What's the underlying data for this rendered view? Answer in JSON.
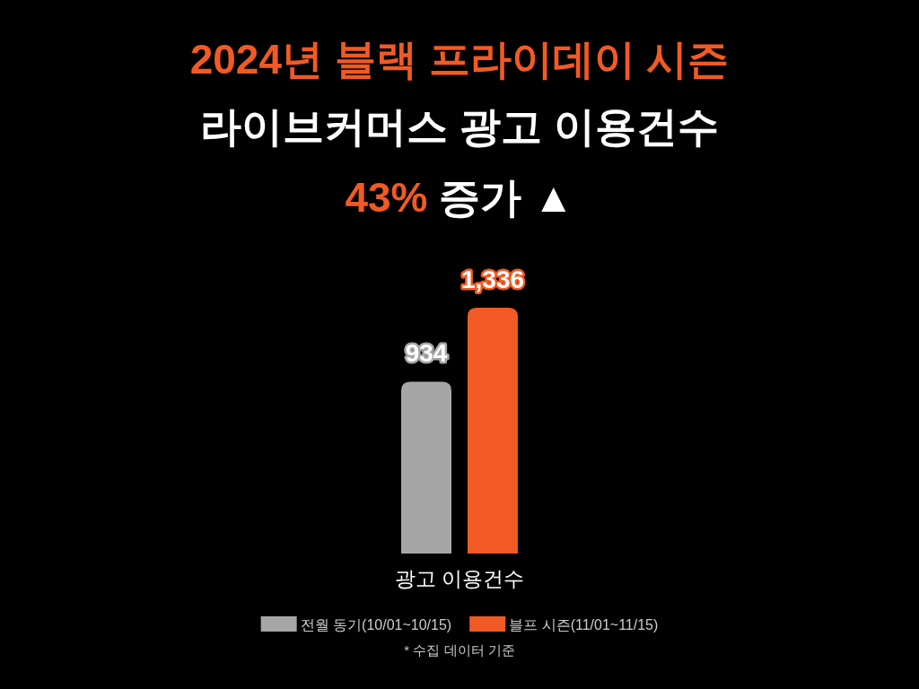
{
  "chart_data": {
    "type": "bar",
    "title": "2024년 블랙 프라이데이 시즌",
    "subtitle": "라이브커머스 광고 이용건수",
    "annotations": [
      "43% 증가 ▲",
      "* 수집 데이터 기준"
    ],
    "categories": [
      "광고 이용건수"
    ],
    "series": [
      {
        "name": "전월 동기(10/01~10/15)",
        "color": "#a6a6a6",
        "values": [
          934
        ],
        "value_labels": [
          "934"
        ]
      },
      {
        "name": "블프 시즌(11/01~11/15)",
        "color": "#f15a24",
        "values": [
          1336
        ],
        "value_labels": [
          "1,336"
        ]
      }
    ],
    "legend": "bottom"
  }
}
